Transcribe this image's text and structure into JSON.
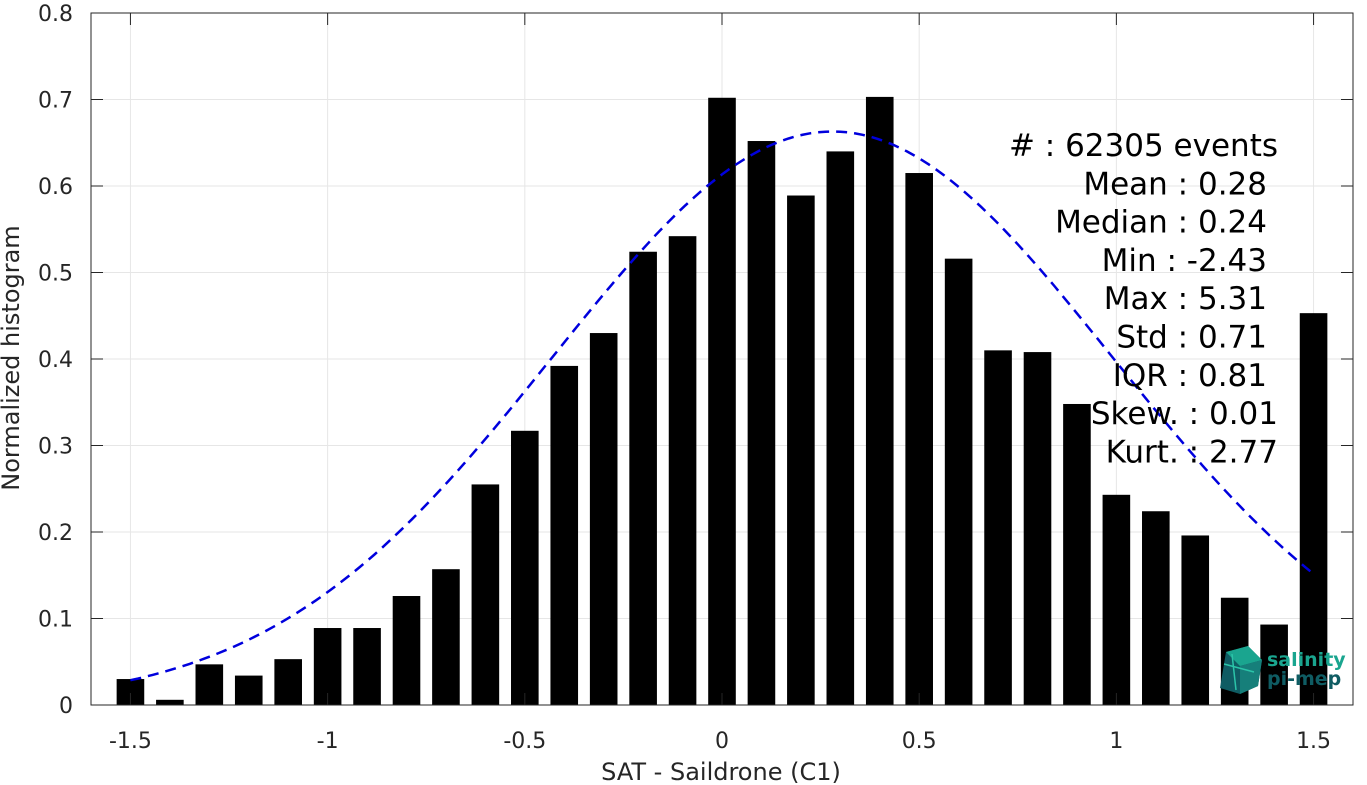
{
  "colors": {
    "bar": "#000000",
    "fit_line": "#0000dd",
    "grid": "#e6e6e6",
    "axis": "#262626",
    "logo_teal": "#1aa58f",
    "logo_dark": "#0f5c63"
  },
  "chart_data": {
    "type": "bar",
    "xlabel": "SAT - Saildrone (C1)",
    "ylabel": "Normalized histogram",
    "xlim": [
      -1.6,
      1.6
    ],
    "ylim": [
      0,
      0.8
    ],
    "grid": true,
    "xticks": [
      -1.5,
      -1,
      -0.5,
      0,
      0.5,
      1,
      1.5
    ],
    "xtick_labels": [
      "-1.5",
      "-1",
      "-0.5",
      "0",
      "0.5",
      "1",
      "1.5"
    ],
    "yticks": [
      0,
      0.1,
      0.2,
      0.3,
      0.4,
      0.5,
      0.6,
      0.7,
      0.8
    ],
    "ytick_labels": [
      "0",
      "0.1",
      "0.2",
      "0.3",
      "0.4",
      "0.5",
      "0.6",
      "0.7",
      "0.8"
    ],
    "bin_width": 0.1,
    "x": [
      -1.5,
      -1.4,
      -1.3,
      -1.2,
      -1.1,
      -1.0,
      -0.9,
      -0.8,
      -0.7,
      -0.6,
      -0.5,
      -0.4,
      -0.3,
      -0.2,
      -0.1,
      0.0,
      0.1,
      0.2,
      0.3,
      0.4,
      0.5,
      0.6,
      0.7,
      0.8,
      0.9,
      1.0,
      1.1,
      1.2,
      1.3,
      1.4,
      1.5
    ],
    "values": [
      0.03,
      0.006,
      0.047,
      0.034,
      0.053,
      0.089,
      0.089,
      0.126,
      0.157,
      0.255,
      0.317,
      0.392,
      0.43,
      0.524,
      0.542,
      0.702,
      0.652,
      0.589,
      0.64,
      0.703,
      0.615,
      0.516,
      0.41,
      0.408,
      0.348,
      0.243,
      0.224,
      0.196,
      0.124,
      0.093,
      0.453
    ],
    "fit": {
      "type": "normal",
      "mean": 0.28,
      "std": 0.71,
      "style": "dashed"
    },
    "annotations": [
      {
        "key": "#  ",
        "value": "62305 events"
      },
      {
        "key": "Mean",
        "value": "0.28"
      },
      {
        "key": "Median",
        "value": "0.24"
      },
      {
        "key": "Min",
        "value": "-2.43"
      },
      {
        "key": "Max",
        "value": "5.31"
      },
      {
        "key": "Std",
        "value": "0.71"
      },
      {
        "key": "IQR",
        "value": "0.81"
      },
      {
        "key": "Skew.",
        "value": "0.01"
      },
      {
        "key": "Kurt.",
        "value": "2.77"
      }
    ],
    "stats_lines": [
      "#  : 62305 events",
      "Mean : 0.28",
      "Median : 0.24",
      "Min : -2.43",
      "Max : 5.31",
      "Std : 0.71",
      "IQR : 0.81",
      "Skew. : 0.01",
      "Kurt. : 2.77"
    ]
  },
  "logo": {
    "name": "salinity-pimep-logo",
    "line1": "salinity",
    "line2": "pi-mep"
  }
}
